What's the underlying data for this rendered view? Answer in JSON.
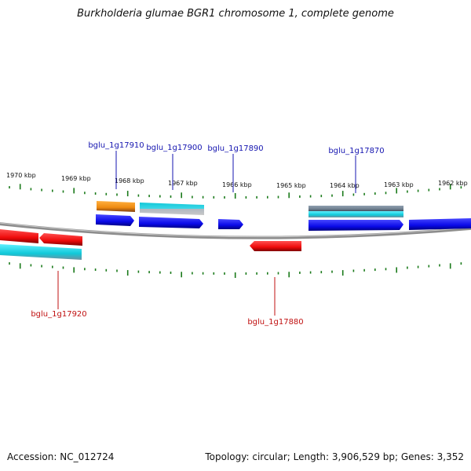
{
  "title": "Burkholderia glumae BGR1 chromosome 1, complete genome",
  "footer": {
    "accession": "Accession: NC_012724",
    "summary": "Topology: circular; Length: 3,906,529 bp; Genes: 3,352"
  },
  "colors": {
    "backbone": "#808080",
    "tick": "#1a7a1a",
    "forward_label": "#1515b0",
    "reverse_label": "#c01010",
    "gene_blue": "#1010ee",
    "gene_red": "#ee1010",
    "gene_cyan": "#10c8d8",
    "gene_orange": "#ee8a10",
    "gene_gray": "#708090"
  },
  "scale": {
    "kbp_labels": [
      "1970 kbp",
      "1969 kbp",
      "1968 kbp",
      "1967 kbp",
      "1966 kbp",
      "1965 kbp",
      "1964 kbp",
      "1963 kbp",
      "1962 kbp"
    ]
  },
  "gene_labels": [
    {
      "text": "bglu_1g17910",
      "strand": "forward"
    },
    {
      "text": "bglu_1g17900",
      "strand": "forward"
    },
    {
      "text": "bglu_1g17890",
      "strand": "forward"
    },
    {
      "text": "bglu_1g17870",
      "strand": "forward"
    },
    {
      "text": "bglu_1g17920",
      "strand": "reverse"
    },
    {
      "text": "bglu_1g17880",
      "strand": "reverse"
    }
  ]
}
